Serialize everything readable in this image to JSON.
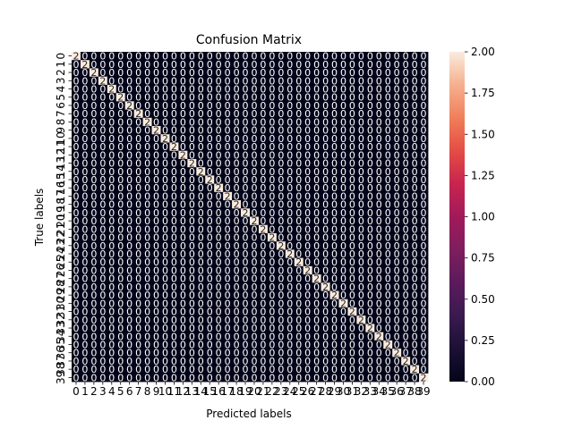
{
  "chart_data": {
    "type": "heatmap",
    "title": "Confusion Matrix",
    "xlabel": "Predicted labels",
    "ylabel": "True labels",
    "labels": [
      "0",
      "1",
      "2",
      "3",
      "4",
      "5",
      "6",
      "7",
      "8",
      "9",
      "10",
      "11",
      "12",
      "13",
      "14",
      "15",
      "16",
      "17",
      "18",
      "19",
      "20",
      "21",
      "22",
      "23",
      "24",
      "25",
      "26",
      "27",
      "28",
      "29",
      "30",
      "31",
      "32",
      "33",
      "34",
      "35",
      "36",
      "37",
      "38",
      "39"
    ],
    "diagonal_value": 2,
    "off_diagonal_value": 0,
    "value_range": [
      0,
      2
    ],
    "colorbar_ticks": [
      "0.00",
      "0.25",
      "0.50",
      "0.75",
      "1.00",
      "1.25",
      "1.50",
      "1.75",
      "2.00"
    ],
    "colormap": "rocket",
    "cell_annotations": true,
    "grid": false
  }
}
